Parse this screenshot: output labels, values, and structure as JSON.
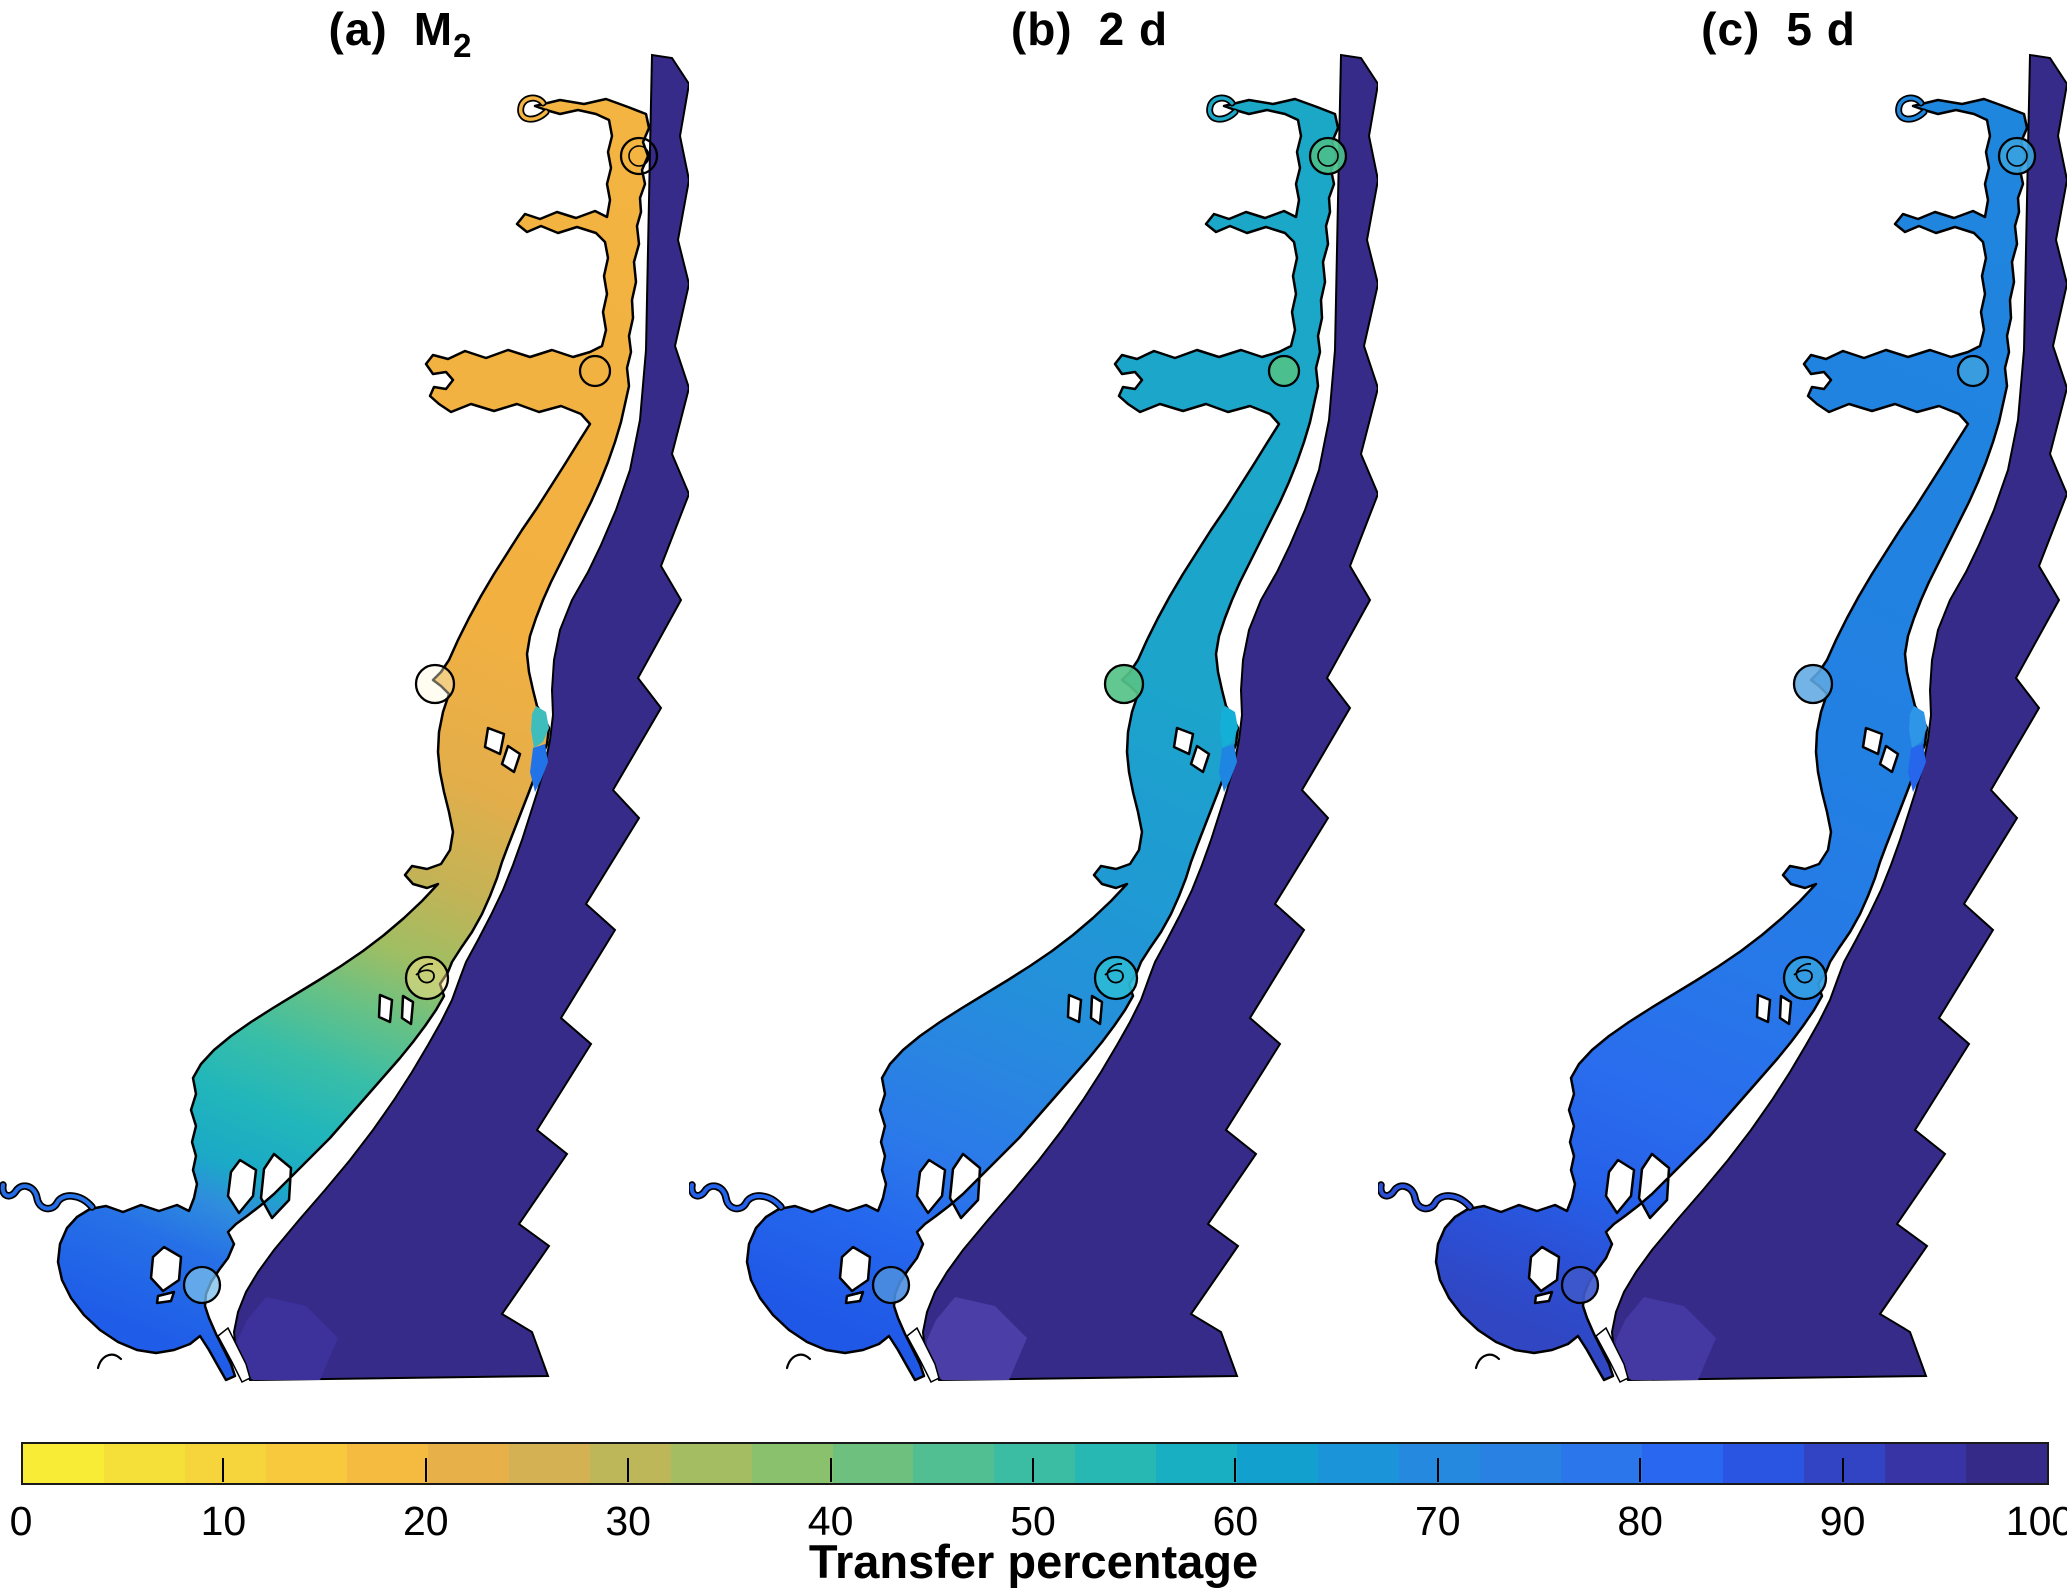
{
  "figure": {
    "panels": [
      {
        "id": "a",
        "label": "(a)",
        "title_main": "M",
        "title_sub": "2"
      },
      {
        "id": "b",
        "label": "(b)",
        "title_main": "2 d",
        "title_sub": ""
      },
      {
        "id": "c",
        "label": "(c)",
        "title_main": "5 d",
        "title_sub": ""
      }
    ]
  },
  "colorbar": {
    "label": "Transfer percentage",
    "tick_labels": [
      "0",
      "10",
      "20",
      "30",
      "40",
      "50",
      "60",
      "70",
      "80",
      "90",
      "100"
    ],
    "border_color": "#1a1a1a",
    "tick_color": "#000000",
    "segment_colors": [
      "#F9EC37",
      "#F4E039",
      "#F6D43B",
      "#F8C83D",
      "#F5BB40",
      "#E8B049",
      "#D4B152",
      "#BDB75A",
      "#A4BD62",
      "#89C16C",
      "#6DC07E",
      "#52BF92",
      "#3BBDA4",
      "#27B8B4",
      "#18AFC3",
      "#12A1CF",
      "#1B94D9",
      "#2489DF",
      "#2A81E4",
      "#2C76EB",
      "#2A67F1",
      "#2A55E2",
      "#3244C4",
      "#3934A6",
      "#352A87"
    ]
  },
  "map": {
    "land_color": "#ffffff",
    "outline_color": "#000000",
    "ocean_color": "#362B89",
    "ocean_inlet_patch": {
      "a": "#3D319C",
      "b": "#4B3EA6",
      "c": "#4438A2"
    },
    "gradients": {
      "a": [
        [
          "0",
          "#F3B441"
        ],
        [
          "40",
          "#F2B041"
        ],
        [
          "52",
          "#E3AE4A"
        ],
        [
          "60",
          "#C3B356"
        ],
        [
          "66",
          "#9FBE63"
        ],
        [
          "71",
          "#66C186"
        ],
        [
          "76",
          "#39BEA7"
        ],
        [
          "81",
          "#21B6BB"
        ],
        [
          "86",
          "#1BA9C7"
        ],
        [
          "89",
          "#2F8DDD"
        ],
        [
          "93",
          "#2670E7"
        ],
        [
          "100",
          "#1F5DE8"
        ]
      ],
      "b": [
        [
          "0",
          "#1BA8C7"
        ],
        [
          "45",
          "#1CA4CB"
        ],
        [
          "60",
          "#1F9AD3"
        ],
        [
          "70",
          "#2490DA"
        ],
        [
          "78",
          "#2A84E2"
        ],
        [
          "85",
          "#2B78EA"
        ],
        [
          "91",
          "#2568EE"
        ],
        [
          "100",
          "#1F57E6"
        ]
      ],
      "c": [
        [
          "0",
          "#1F86DE"
        ],
        [
          "50",
          "#2280E2"
        ],
        [
          "68",
          "#2778E8"
        ],
        [
          "80",
          "#2A6CEE"
        ],
        [
          "88",
          "#2560E8"
        ],
        [
          "94",
          "#2B50D6"
        ],
        [
          "100",
          "#3046C2"
        ]
      ]
    },
    "inlet_spot": {
      "a": [
        "#3FBDBD",
        "#2373E8"
      ],
      "b": [
        "#14AFD6",
        "#1E86E2"
      ],
      "c": [
        "#2F95E6",
        "#2566EC"
      ]
    },
    "markers": [
      [
        639,
        156,
        18
      ],
      [
        639,
        156,
        10
      ],
      [
        595,
        371,
        15
      ],
      [
        435,
        684,
        19
      ],
      [
        427,
        978,
        21
      ],
      [
        202,
        1285,
        18
      ]
    ],
    "marker_fills": {
      "a": [
        "none",
        "none",
        "none",
        "rgba(255,250,220,0.40)",
        "rgba(255,228,140,0.45)",
        "rgba(120,190,235,0.75)"
      ],
      "b": [
        "rgba(74,191,140,0.92)",
        "none",
        "rgba(80,193,138,0.92)",
        "rgba(86,194,136,0.92)",
        "rgba(45,185,214,0.92)",
        "rgba(75,142,224,0.90)"
      ],
      "c": [
        "rgba(55,162,222,0.92)",
        "none",
        "rgba(60,158,221,0.92)",
        "rgba(96,168,226,0.88)",
        "rgba(52,158,226,0.92)",
        "rgba(62,88,202,0.92)"
      ]
    }
  },
  "chart_data": {
    "type": "heatmap",
    "title": "Transfer percentage",
    "description": "Three choropleth map panels of a barrier-island coastal lagoon system showing water transfer percentage for tidal (M2), 2-day and 5-day timescales; offshore ocean is 100%.",
    "panels": [
      {
        "label": "(a)",
        "title": "M2",
        "regions": {
          "northern_bays_pct": 22,
          "mid_lagoon_pct": 25,
          "lower_lagoon_pct": 42,
          "southern_bay_pct": 58,
          "great_bay_pct": 76,
          "ocean_pct": 100
        }
      },
      {
        "label": "(b)",
        "title": "2 d",
        "regions": {
          "northern_bays_pct": 62,
          "mid_lagoon_pct": 63,
          "lower_lagoon_pct": 68,
          "southern_bay_pct": 76,
          "great_bay_pct": 84,
          "ocean_pct": 100
        }
      },
      {
        "label": "(c)",
        "title": "5 d",
        "regions": {
          "northern_bays_pct": 76,
          "mid_lagoon_pct": 77,
          "lower_lagoon_pct": 80,
          "southern_bay_pct": 83,
          "great_bay_pct": 88,
          "ocean_pct": 100
        }
      }
    ],
    "colorbar": {
      "label": "Transfer percentage",
      "range": [
        0,
        100
      ],
      "ticks": [
        0,
        10,
        20,
        30,
        40,
        50,
        60,
        70,
        80,
        90,
        100
      ],
      "colormap": "parula reversed",
      "n_segments": 25
    },
    "legend_position": "bottom",
    "grid": false
  }
}
